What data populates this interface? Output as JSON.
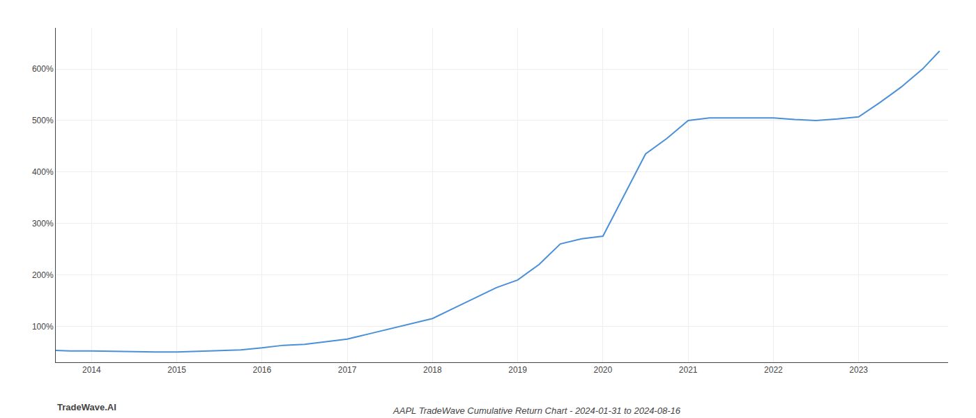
{
  "chart_data": {
    "type": "line",
    "title": "AAPL TradeWave Cumulative Return Chart - 2024-01-31 to 2024-08-16",
    "annotations": [
      {
        "text": "TradeWave.AI"
      }
    ],
    "x": [
      2013.58,
      2013.75,
      2014.0,
      2014.25,
      2014.5,
      2014.75,
      2015.0,
      2015.25,
      2015.5,
      2015.75,
      2016.0,
      2016.25,
      2016.5,
      2016.75,
      2017.0,
      2017.25,
      2017.5,
      2017.75,
      2018.0,
      2018.25,
      2018.5,
      2018.75,
      2019.0,
      2019.25,
      2019.5,
      2019.75,
      2020.0,
      2020.25,
      2020.5,
      2020.75,
      2021.0,
      2021.25,
      2021.5,
      2021.75,
      2022.0,
      2022.25,
      2022.5,
      2022.75,
      2023.0,
      2023.25,
      2023.5,
      2023.75,
      2023.95
    ],
    "values": [
      53,
      52,
      52,
      51,
      50,
      50,
      50,
      51,
      52,
      54,
      58,
      63,
      65,
      70,
      75,
      85,
      95,
      105,
      115,
      135,
      155,
      175,
      190,
      220,
      260,
      270,
      275,
      355,
      435,
      465,
      500,
      505,
      505,
      505,
      505,
      502,
      500,
      503,
      507,
      535,
      565,
      600,
      635
    ],
    "color": "#4a90d9",
    "xlim": [
      2013.58,
      2024.05
    ],
    "xticks": [
      2014,
      2015,
      2016,
      2017,
      2018,
      2019,
      2020,
      2021,
      2022,
      2023
    ],
    "ylim": [
      30,
      680
    ],
    "yticks": [
      {
        "value": 100,
        "label": "100%"
      },
      {
        "value": 200,
        "label": "200%"
      },
      {
        "value": 300,
        "label": "300%"
      },
      {
        "value": 400,
        "label": "400%"
      },
      {
        "value": 500,
        "label": "500%"
      },
      {
        "value": 600,
        "label": "600%"
      }
    ],
    "grid": true
  }
}
